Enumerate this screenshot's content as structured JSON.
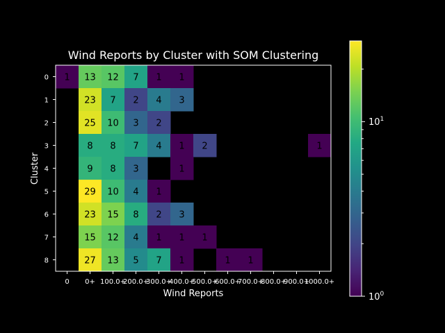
{
  "chart_data": {
    "type": "heatmap",
    "title": "Wind Reports by Cluster with SOM Clustering",
    "xlabel": "Wind Reports",
    "ylabel": "Cluster",
    "x_categories": [
      "0",
      "0+",
      "100.0+",
      "200.0+",
      "300.0+",
      "400.0+",
      "500.0+",
      "600.0+",
      "700.0+",
      "800.0+",
      "900.0+",
      "1000.0+"
    ],
    "y_categories": [
      "0",
      "1",
      "2",
      "3",
      "4",
      "5",
      "6",
      "7",
      "8"
    ],
    "values": [
      [
        1,
        13,
        12,
        7,
        1,
        1,
        null,
        null,
        null,
        null,
        null,
        null
      ],
      [
        null,
        23,
        7,
        2,
        4,
        3,
        null,
        null,
        null,
        null,
        null,
        null
      ],
      [
        null,
        25,
        10,
        3,
        2,
        null,
        null,
        null,
        null,
        null,
        null,
        null
      ],
      [
        null,
        8,
        8,
        7,
        4,
        1,
        2,
        null,
        null,
        null,
        null,
        1
      ],
      [
        null,
        9,
        8,
        3,
        null,
        1,
        null,
        null,
        null,
        null,
        null,
        null
      ],
      [
        null,
        29,
        10,
        4,
        1,
        null,
        null,
        null,
        null,
        null,
        null,
        null
      ],
      [
        null,
        23,
        15,
        8,
        2,
        3,
        null,
        null,
        null,
        null,
        null,
        null
      ],
      [
        null,
        15,
        12,
        4,
        1,
        1,
        1,
        null,
        null,
        null,
        null,
        null
      ],
      [
        null,
        27,
        13,
        5,
        7,
        1,
        null,
        1,
        1,
        null,
        null,
        null
      ]
    ],
    "colorbar": {
      "scale": "log",
      "min": 1,
      "max": 29,
      "colormap": "viridis",
      "tick_labels": [
        "10^0",
        "10^1"
      ]
    },
    "background": "#000000",
    "text_color": "#ffffff"
  }
}
